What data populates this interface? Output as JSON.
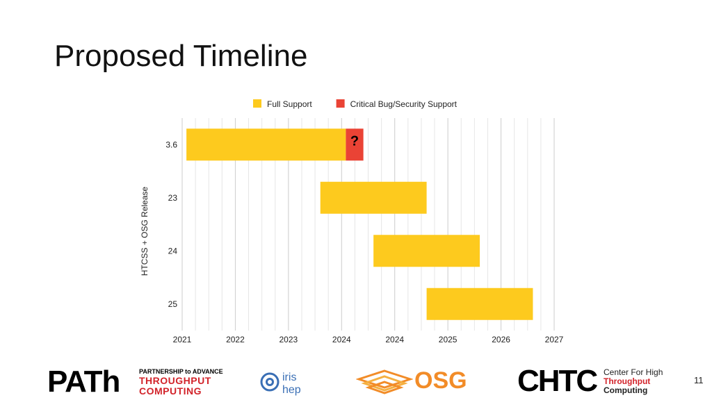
{
  "slide": {
    "title": "Proposed Timeline",
    "page_number": "11"
  },
  "colors": {
    "full_support": "#fdca1e",
    "critical_support": "#ea4335",
    "grid": "#d9d9d9",
    "path_red": "#d2232a",
    "osg_orange": "#f28c28",
    "iris_blue": "#3a6fb5"
  },
  "chart_data": {
    "type": "bar",
    "orientation": "horizontal-range",
    "ylabel": "HTCSS + OSG Release",
    "xlabel": "",
    "categories": [
      "3.6",
      "23",
      "24",
      "25"
    ],
    "x_ticks": [
      "2021",
      "2022",
      "2023",
      "2024",
      "2024",
      "2025",
      "2026",
      "2027"
    ],
    "xlim": [
      0,
      7
    ],
    "grid": true,
    "legend_position": "top",
    "legend": [
      {
        "name": "Full Support",
        "color": "#fdca1e"
      },
      {
        "name": "Critical Bug/Security Support",
        "color": "#ea4335"
      }
    ],
    "series": [
      {
        "name": "Full Support",
        "ranges": [
          [
            0.08,
            3.08
          ],
          [
            2.6,
            4.6
          ],
          [
            3.6,
            5.6
          ],
          [
            4.6,
            6.6
          ]
        ]
      },
      {
        "name": "Critical Bug/Security Support",
        "ranges": [
          [
            3.08,
            3.41
          ],
          null,
          null,
          null
        ]
      }
    ],
    "annotations": [
      {
        "category": "3.6",
        "text": "?"
      }
    ]
  },
  "logos": {
    "path": {
      "main": "PATh",
      "sub_top": "PARTNERSHIP to ADVANCE",
      "sub_1": "THROUGHPUT",
      "sub_2": "COMPUTING"
    },
    "iris": {
      "top": "iris",
      "bottom": "hep"
    },
    "osg": {
      "text": "OSG"
    },
    "chtc": {
      "main": "CHTC",
      "line1": "Center For High",
      "line2": "Throughput",
      "line3": "Computing"
    }
  }
}
